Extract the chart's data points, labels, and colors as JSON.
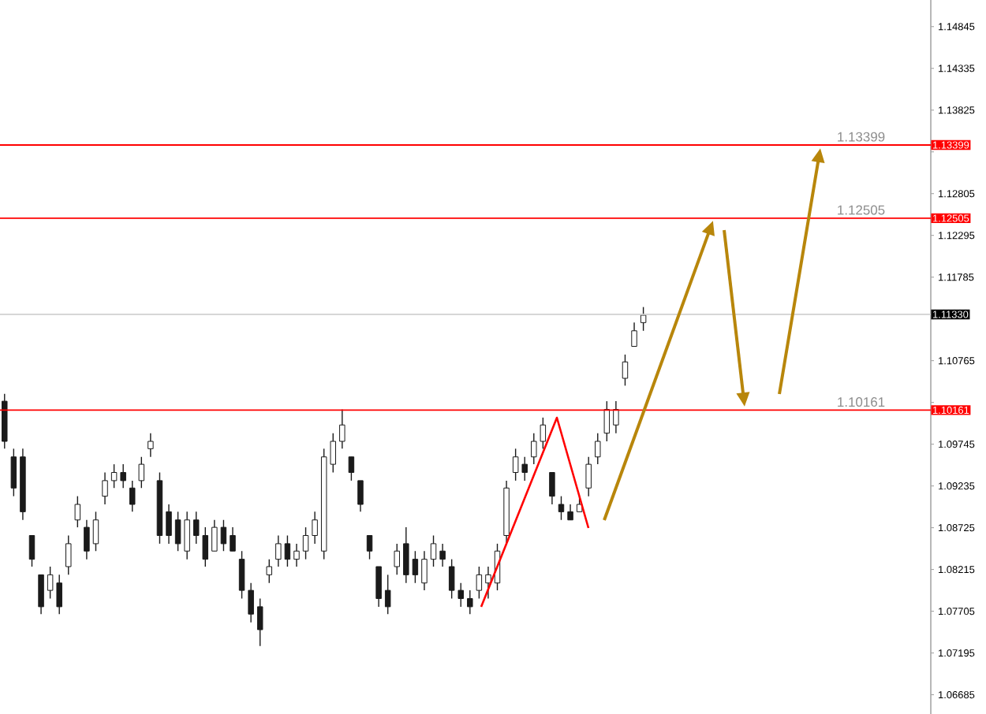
{
  "chart_data": {
    "type": "candlestick",
    "categories": [
      null,
      null,
      null,
      null,
      null,
      null,
      null,
      null,
      null,
      null,
      null,
      null,
      null,
      null,
      null,
      null,
      null,
      null,
      null,
      null,
      null,
      null,
      null,
      null,
      null,
      null,
      null,
      null,
      null,
      null,
      null,
      null,
      null,
      null,
      null,
      null,
      null,
      null,
      null,
      null,
      null,
      null,
      null,
      null,
      null,
      null,
      null,
      null,
      null,
      null,
      null,
      null,
      null,
      null,
      null,
      null,
      null,
      null,
      null,
      null,
      null,
      null,
      null,
      null,
      null,
      null,
      null,
      null,
      null,
      null,
      null,
      null,
      null,
      null,
      null,
      null,
      null,
      null,
      null,
      null,
      null,
      null,
      null,
      null,
      null,
      null,
      null,
      null,
      null,
      null,
      null,
      null,
      null,
      null,
      null,
      null,
      null,
      null,
      null,
      null,
      null,
      null
    ],
    "ohlc": [
      [
        1.1027,
        1.1036,
        1.0969,
        1.0978
      ],
      [
        1.0959,
        1.0969,
        1.0911,
        1.0921
      ],
      [
        1.0959,
        1.0969,
        1.0882,
        1.0892
      ],
      [
        1.0863,
        1.0863,
        1.0825,
        1.0834
      ],
      [
        1.0815,
        1.0815,
        1.0767,
        1.0776
      ],
      [
        1.0796,
        1.0825,
        1.0786,
        1.0815
      ],
      [
        1.0805,
        1.0815,
        1.0767,
        1.0776
      ],
      [
        1.0825,
        1.0863,
        1.0815,
        1.0853
      ],
      [
        1.0882,
        1.0911,
        1.0873,
        1.0901
      ],
      [
        1.0873,
        1.0882,
        1.0834,
        1.0844
      ],
      [
        1.0853,
        1.0892,
        1.0844,
        1.0882
      ],
      [
        1.0911,
        1.094,
        1.0901,
        1.093
      ],
      [
        1.093,
        1.095,
        1.0921,
        1.094
      ],
      [
        1.094,
        1.095,
        1.0921,
        1.093
      ],
      [
        1.0921,
        1.093,
        1.0892,
        1.0901
      ],
      [
        1.093,
        1.0959,
        1.0921,
        1.095
      ],
      [
        1.0969,
        1.0988,
        1.0959,
        1.0978
      ],
      [
        1.093,
        1.094,
        1.0853,
        1.0863
      ],
      [
        1.0892,
        1.0901,
        1.0853,
        1.0863
      ],
      [
        1.0882,
        1.0892,
        1.0844,
        1.0853
      ],
      [
        1.0844,
        1.0892,
        1.0834,
        1.0882
      ],
      [
        1.0882,
        1.0892,
        1.0853,
        1.0863
      ],
      [
        1.0863,
        1.0873,
        1.0825,
        1.0834
      ],
      [
        1.0844,
        1.0882,
        1.0844,
        1.0873
      ],
      [
        1.0873,
        1.0882,
        1.0844,
        1.0853
      ],
      [
        1.0863,
        1.0873,
        1.0844,
        1.0844
      ],
      [
        1.0834,
        1.0844,
        1.0786,
        1.0796
      ],
      [
        1.0796,
        1.0805,
        1.0757,
        1.0767
      ],
      [
        1.0776,
        1.0786,
        1.0728,
        1.0748
      ],
      [
        1.0815,
        1.0834,
        1.0805,
        1.0825
      ],
      [
        1.0834,
        1.0863,
        1.0825,
        1.0853
      ],
      [
        1.0853,
        1.0863,
        1.0825,
        1.0834
      ],
      [
        1.0834,
        1.0853,
        1.0825,
        1.0844
      ],
      [
        1.0844,
        1.0873,
        1.0834,
        1.0863
      ],
      [
        1.0863,
        1.0892,
        1.0853,
        1.0882
      ],
      [
        1.0844,
        1.0969,
        1.0834,
        1.0959
      ],
      [
        1.095,
        1.0988,
        1.094,
        1.0978
      ],
      [
        1.0978,
        1.1017,
        1.0969,
        1.0998
      ],
      [
        1.0959,
        1.0959,
        1.093,
        1.094
      ],
      [
        1.093,
        1.093,
        1.0892,
        1.0901
      ],
      [
        1.0863,
        1.0863,
        1.0834,
        1.0844
      ],
      [
        1.0825,
        1.0825,
        1.0776,
        1.0786
      ],
      [
        1.0796,
        1.0815,
        1.0767,
        1.0776
      ],
      [
        1.0825,
        1.0853,
        1.0815,
        1.0844
      ],
      [
        1.0853,
        1.0873,
        1.0805,
        1.0815
      ],
      [
        1.0834,
        1.0844,
        1.0805,
        1.0815
      ],
      [
        1.0805,
        1.0844,
        1.0796,
        1.0834
      ],
      [
        1.0834,
        1.0863,
        1.0825,
        1.0853
      ],
      [
        1.0844,
        1.0853,
        1.0825,
        1.0834
      ],
      [
        1.0825,
        1.0834,
        1.0786,
        1.0796
      ],
      [
        1.0796,
        1.0805,
        1.0776,
        1.0786
      ],
      [
        1.0786,
        1.0796,
        1.0767,
        1.0776
      ],
      [
        1.0796,
        1.0825,
        1.0786,
        1.0815
      ],
      [
        1.0805,
        1.0825,
        1.0786,
        1.0815
      ],
      [
        1.0805,
        1.0853,
        1.0796,
        1.0844
      ],
      [
        1.0863,
        1.093,
        1.0853,
        1.0921
      ],
      [
        1.094,
        1.0969,
        1.093,
        1.0959
      ],
      [
        1.095,
        1.0959,
        1.093,
        1.094
      ],
      [
        1.0959,
        1.0988,
        1.095,
        1.0978
      ],
      [
        1.0978,
        1.1007,
        1.0969,
        1.0998
      ],
      [
        1.094,
        1.094,
        1.0901,
        1.0911
      ],
      [
        1.0901,
        1.0911,
        1.0882,
        1.0892
      ],
      [
        1.0892,
        1.0901,
        1.0882,
        1.0882
      ],
      [
        1.0892,
        1.0911,
        1.0892,
        1.0901
      ],
      [
        1.0921,
        1.0959,
        1.0911,
        1.095
      ],
      [
        1.0959,
        1.0988,
        1.095,
        1.0978
      ],
      [
        1.0988,
        1.1027,
        1.0978,
        1.1017
      ],
      [
        1.0998,
        1.1027,
        1.0988,
        1.1017
      ],
      [
        1.1055,
        1.1084,
        1.1046,
        1.1075
      ],
      [
        1.1094,
        1.1123,
        1.1094,
        1.1113
      ],
      [
        1.1123,
        1.1142,
        1.1113,
        1.1132
      ],
      null,
      null,
      null,
      null,
      null,
      null,
      null,
      null,
      null,
      null,
      null,
      null,
      null,
      null,
      null,
      null,
      null,
      null,
      null,
      null,
      null,
      null,
      null,
      null,
      null,
      null,
      null,
      null,
      null,
      null,
      null
    ],
    "color": "#1a1a1a",
    "ylim": [
      1.0645,
      1.1517
    ],
    "yticks": [
      1.14845,
      1.14335,
      1.13825,
      {
        "value": 1.13315,
        "label": null
      },
      1.12805,
      1.12295,
      1.11785,
      {
        "value": 1.11275,
        "label": null
      },
      1.10765,
      {
        "value": 1.10255,
        "label": null
      },
      1.09745,
      1.09235,
      1.08725,
      1.08215,
      1.07705,
      1.07195,
      1.06685
    ],
    "ref_lines": [
      {
        "axis": "y",
        "value": 1.13399,
        "label": "1.13399",
        "color": "#ff0000"
      },
      {
        "axis": "y",
        "value": 1.12505,
        "label": "1.12505",
        "color": "#ff0000"
      },
      {
        "axis": "y",
        "value": 1.1133,
        "label": "1.11330",
        "color": "#d0d0d0"
      },
      {
        "axis": "y",
        "value": 1.10161,
        "label": "1.10161",
        "color": "#ff0000"
      }
    ],
    "annotations": [
      {
        "text": "1.13399",
        "y": 1.13399
      },
      {
        "text": "1.12505",
        "y": 1.12505
      },
      {
        "text": "1.10161",
        "y": 1.10161
      }
    ]
  }
}
